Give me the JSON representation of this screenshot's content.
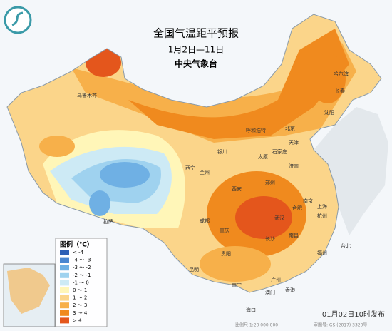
{
  "header": {
    "title": "全国气温距平预报",
    "subtitle": "1月2日—11日",
    "issuer": "中央气象台"
  },
  "legend": {
    "title": "图例（℃）",
    "items": [
      {
        "label": "< -4",
        "color": "#2d5fb5"
      },
      {
        "label": "-4 ～ -3",
        "color": "#4a86d0"
      },
      {
        "label": "-3 ～ -2",
        "color": "#6fb0e4"
      },
      {
        "label": "-2 ～ -1",
        "color": "#9fd2ef"
      },
      {
        "label": "-1 ～ 0",
        "color": "#cdeaf5"
      },
      {
        "label": "0 ～ 1",
        "color": "#fff6b8"
      },
      {
        "label": "1 ～ 2",
        "color": "#fbd58a"
      },
      {
        "label": "2 ～ 3",
        "color": "#f7b04a"
      },
      {
        "label": "3 ～ 4",
        "color": "#f08a1e"
      },
      {
        "label": "> 4",
        "color": "#e4561c"
      }
    ]
  },
  "cities": [
    "乌鲁木齐",
    "哈尔滨",
    "长春",
    "沈阳",
    "呼和浩特",
    "北京",
    "天津",
    "银川",
    "太原",
    "石家庄",
    "西宁",
    "兰州",
    "济南",
    "郑州",
    "西安",
    "南京",
    "合肥",
    "上海",
    "拉萨",
    "成都",
    "武汉",
    "杭州",
    "重庆",
    "长沙",
    "南昌",
    "福州",
    "贵阳",
    "昆明",
    "南宁",
    "广州",
    "香港",
    "澳门",
    "台北",
    "海口"
  ],
  "footer": {
    "issued": "01月02日10时发布",
    "scale": "比例尺 1:20 000 000",
    "approval": "审图号: GS (2017) 3320号"
  }
}
